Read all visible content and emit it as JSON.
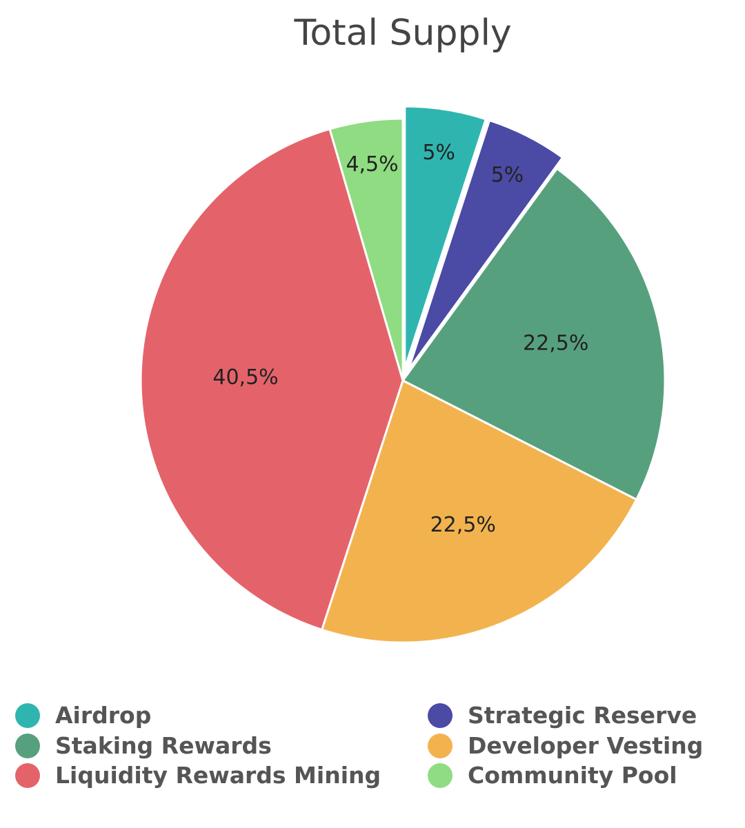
{
  "chart_data": {
    "type": "pie",
    "title": "Total Supply",
    "slices": [
      {
        "name": "Airdrop",
        "value": 5,
        "label": "5%",
        "color": "#2fb5b0",
        "exploded": true
      },
      {
        "name": "Strategic Reserve",
        "value": 5,
        "label": "5%",
        "color": "#4b4aa5",
        "exploded": true
      },
      {
        "name": "Staking Rewards",
        "value": 22.5,
        "label": "22,5%",
        "color": "#57a07e",
        "exploded": false
      },
      {
        "name": "Developer Vesting",
        "value": 22.5,
        "label": "22,5%",
        "color": "#f2b34f",
        "exploded": false
      },
      {
        "name": "Liquidity Rewards Mining",
        "value": 40.5,
        "label": "40,5%",
        "color": "#e4636b",
        "exploded": false
      },
      {
        "name": "Community Pool",
        "value": 4.5,
        "label": "4,5%",
        "color": "#8fdc82",
        "exploded": false
      }
    ],
    "legend": {
      "placement": "bottom",
      "columns": [
        [
          "Airdrop",
          "Staking Rewards",
          "Liquidity Rewards Mining"
        ],
        [
          "Strategic Reserve",
          "Developer Vesting",
          "Community Pool"
        ]
      ]
    }
  }
}
